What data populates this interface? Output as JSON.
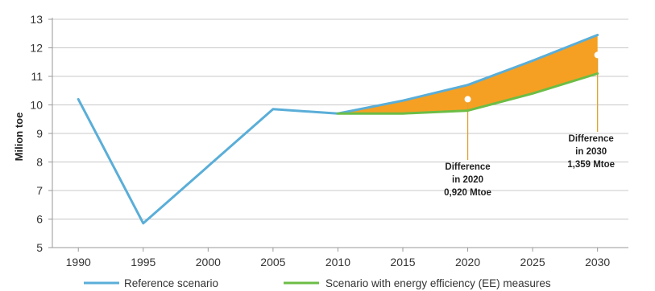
{
  "chart_data": {
    "type": "line",
    "ylabel": "Milion toe",
    "xlabel": "",
    "x": [
      1990,
      1995,
      2000,
      2005,
      2010,
      2015,
      2020,
      2025,
      2030
    ],
    "x_tick_labels": [
      "1990",
      "1995",
      "2000",
      "2005",
      "2010",
      "2015",
      "2020",
      "2025",
      "2030"
    ],
    "y_tick_labels": [
      "5",
      "6",
      "7",
      "8",
      "9",
      "10",
      "11",
      "12",
      "13"
    ],
    "xlim": [
      1988,
      2033
    ],
    "ylim": [
      5,
      13
    ],
    "grid": "horizontal",
    "legend": "bottom",
    "series": [
      {
        "name": "Reference scenario",
        "color": "#5aaed8",
        "points": [
          [
            1990,
            10.2
          ],
          [
            1995,
            5.85
          ],
          [
            2000,
            7.85
          ],
          [
            2005,
            9.85
          ],
          [
            2010,
            9.7
          ],
          [
            2015,
            10.15
          ],
          [
            2020,
            10.7
          ],
          [
            2025,
            11.55
          ],
          [
            2030,
            12.45
          ]
        ]
      },
      {
        "name": "Scenario with energy efficiency (EE) measures",
        "color": "#6cbd45",
        "points": [
          [
            2010,
            9.7
          ],
          [
            2015,
            9.7
          ],
          [
            2020,
            9.8
          ],
          [
            2025,
            10.4
          ],
          [
            2030,
            11.1
          ]
        ]
      }
    ],
    "fill_between": {
      "color": "#f5a023",
      "from_x": 2010,
      "to_x": 2030
    },
    "annotations": [
      {
        "lines": [
          "Difference",
          "in 2020",
          "0,920 Mtoe"
        ],
        "marker_x": 2020,
        "marker_y": 10.2
      },
      {
        "lines": [
          "Difference",
          "in 2030",
          "1,359 Mtoe"
        ],
        "marker_x": 2030,
        "marker_y": 11.75
      }
    ]
  }
}
